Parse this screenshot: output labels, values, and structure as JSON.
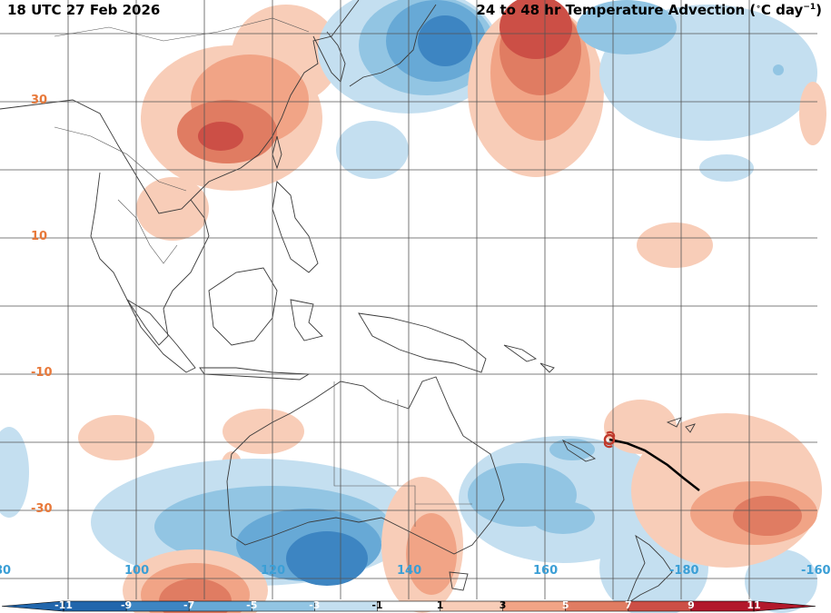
{
  "title_left": "18 UTC 27 Feb 2026",
  "title_right_main": "24 to 48 hr Temperature Advection (",
  "title_right_deg": "∘",
  "title_right_unit": "C day",
  "title_right_exp": "−1",
  "title_right_close": ")",
  "lat_labels": [
    "30",
    "10",
    "-10",
    "-30"
  ],
  "lon_labels": [
    "100",
    "120",
    "140",
    "160",
    "-180",
    "-160"
  ],
  "lon_left_fragment": "80",
  "colorbar": {
    "ticks": [
      "-11",
      "-9",
      "-7",
      "-5",
      "-3",
      "-1",
      "1",
      "3",
      "5",
      "7",
      "9",
      "11"
    ],
    "colors": [
      "#2166ac",
      "#3d85c2",
      "#67a9d6",
      "#92c5e3",
      "#c4dff0",
      "#ffffff",
      "#f8cdb8",
      "#f1a486",
      "#e07c62",
      "#cc4f46",
      "#b2182b"
    ]
  },
  "storm_track": {
    "symbol": "tropical-cyclone-icon",
    "color": "#c0392b"
  }
}
